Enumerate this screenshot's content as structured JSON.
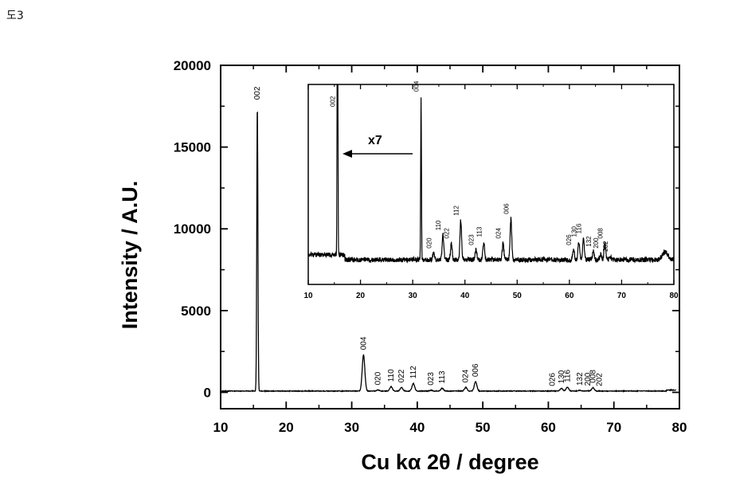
{
  "figure_label": "도3",
  "chart_data": [
    {
      "type": "line",
      "xlabel": "Cu kα 2θ / degree",
      "ylabel": "Intensity / A.U.",
      "xlim": [
        10,
        80
      ],
      "ylim": [
        -1000,
        20000
      ],
      "xticks": [
        10,
        20,
        30,
        40,
        50,
        60,
        70,
        80
      ],
      "yticks": [
        0,
        5000,
        10000,
        15000,
        20000
      ],
      "grid": false,
      "peaks": [
        {
          "label": "002",
          "x": 15.6,
          "y": 17600
        },
        {
          "label": "004",
          "x": 31.8,
          "y": 2300
        },
        {
          "label": "020",
          "x": 34.0,
          "y": 150
        },
        {
          "label": "110",
          "x": 36.0,
          "y": 350
        },
        {
          "label": "022",
          "x": 37.6,
          "y": 300
        },
        {
          "label": "112",
          "x": 39.4,
          "y": 550
        },
        {
          "label": "023",
          "x": 42.1,
          "y": 130
        },
        {
          "label": "113",
          "x": 43.8,
          "y": 250
        },
        {
          "label": "024",
          "x": 47.4,
          "y": 300
        },
        {
          "label": "006",
          "x": 48.9,
          "y": 650
        },
        {
          "label": "026",
          "x": 60.6,
          "y": 90
        },
        {
          "label": "130",
          "x": 62.0,
          "y": 250
        },
        {
          "label": "116",
          "x": 62.9,
          "y": 320
        },
        {
          "label": "132",
          "x": 64.8,
          "y": 120
        },
        {
          "label": "200",
          "x": 66.0,
          "y": 100
        },
        {
          "label": "008",
          "x": 66.8,
          "y": 280
        },
        {
          "label": "202",
          "x": 67.8,
          "y": 80
        }
      ],
      "baseline": 80
    },
    {
      "type": "line",
      "inset": true,
      "annotation": "x7",
      "xlim": [
        10,
        80
      ],
      "xticks": [
        10,
        20,
        30,
        40,
        50,
        60,
        70,
        80
      ],
      "peaks": [
        {
          "label": "002",
          "x": 15.6,
          "height": 2.2
        },
        {
          "label": "004",
          "x": 31.6,
          "height": 1.0
        },
        {
          "label": "020",
          "x": 34.0,
          "height": 0.04
        },
        {
          "label": "110",
          "x": 35.8,
          "height": 0.15
        },
        {
          "label": "022",
          "x": 37.4,
          "height": 0.1
        },
        {
          "label": "112",
          "x": 39.2,
          "height": 0.24
        },
        {
          "label": "023",
          "x": 42.1,
          "height": 0.06
        },
        {
          "label": "113",
          "x": 43.6,
          "height": 0.11
        },
        {
          "label": "024",
          "x": 47.3,
          "height": 0.1
        },
        {
          "label": "006",
          "x": 48.8,
          "height": 0.25
        },
        {
          "label": "026",
          "x": 60.8,
          "height": 0.06
        },
        {
          "label": "130",
          "x": 61.8,
          "height": 0.11
        },
        {
          "label": "116",
          "x": 62.7,
          "height": 0.13
        },
        {
          "label": "132",
          "x": 64.6,
          "height": 0.05
        },
        {
          "label": "200",
          "x": 66.0,
          "height": 0.04
        },
        {
          "label": "008",
          "x": 66.8,
          "height": 0.1
        },
        {
          "label": "202",
          "x": 67.8,
          "height": 0.02
        }
      ]
    }
  ]
}
